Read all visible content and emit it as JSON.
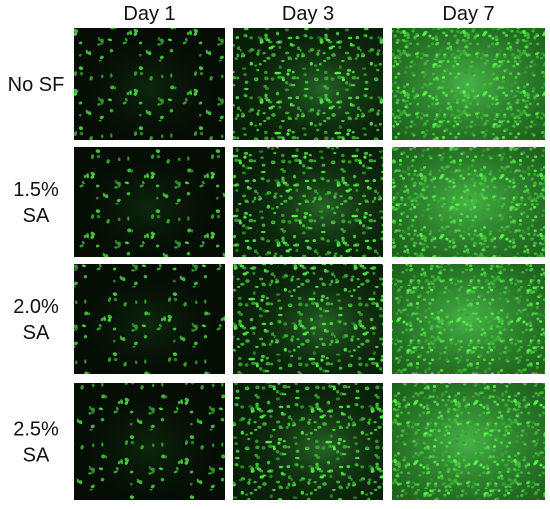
{
  "columns": [
    "Day 1",
    "Day 3",
    "Day 7"
  ],
  "rows": [
    [
      "No SF"
    ],
    [
      "1.5%",
      "SA"
    ],
    [
      "2.0%",
      "SA"
    ],
    [
      "2.5%",
      "SA"
    ]
  ]
}
